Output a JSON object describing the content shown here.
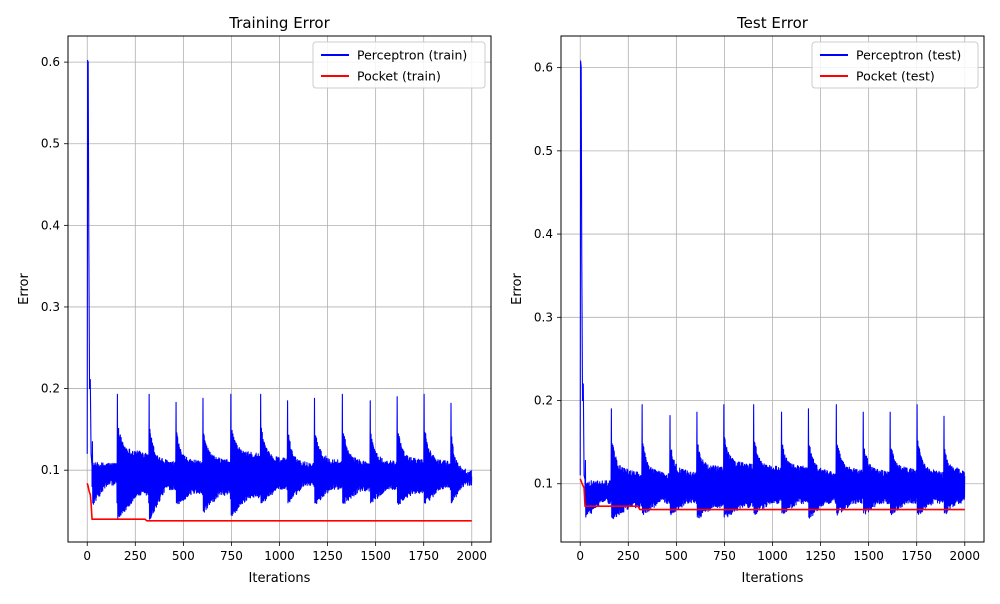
{
  "chart_data": [
    {
      "type": "line",
      "title": "Training Error",
      "xlabel": "Iterations",
      "ylabel": "Error",
      "xlim": [
        -100,
        2100
      ],
      "ylim": [
        0.012,
        0.632
      ],
      "xticks": [
        0,
        250,
        500,
        750,
        1000,
        1250,
        1500,
        1750,
        2000
      ],
      "xtick_labels": [
        "0",
        "250",
        "500",
        "750",
        "1000",
        "1250",
        "1500",
        "1750",
        "2000"
      ],
      "yticks": [
        0.1,
        0.2,
        0.3,
        0.4,
        0.5,
        0.6
      ],
      "ytick_labels": [
        "0.1",
        "0.2",
        "0.3",
        "0.4",
        "0.5",
        "0.6"
      ],
      "grid": true,
      "legend_position": "top-right",
      "series": [
        {
          "name": "Perceptron (train)",
          "color": "#0000ff",
          "start": {
            "x": [
              0,
              2,
              5,
              8,
              12,
              16,
              20,
              25
            ],
            "y": [
              0.12,
              0.602,
              0.6,
              0.39,
              0.2,
              0.211,
              0.12,
              0.105
            ]
          },
          "cycles": [
            {
              "start": 25,
              "peak": 0.135,
              "low_start": 0.06,
              "high_end": 0.108,
              "low_end": 0.085
            },
            {
              "start": 155,
              "peak": 0.193,
              "low_start": 0.04,
              "high_end": 0.12,
              "low_end": 0.072
            },
            {
              "start": 320,
              "peak": 0.193,
              "low_start": 0.04,
              "high_end": 0.108,
              "low_end": 0.08
            },
            {
              "start": 460,
              "peak": 0.183,
              "low_start": 0.06,
              "high_end": 0.108,
              "low_end": 0.075
            },
            {
              "start": 600,
              "peak": 0.188,
              "low_start": 0.05,
              "high_end": 0.11,
              "low_end": 0.073
            },
            {
              "start": 745,
              "peak": 0.193,
              "low_start": 0.045,
              "high_end": 0.118,
              "low_end": 0.07
            },
            {
              "start": 900,
              "peak": 0.193,
              "low_start": 0.06,
              "high_end": 0.112,
              "low_end": 0.08
            },
            {
              "start": 1040,
              "peak": 0.185,
              "low_start": 0.06,
              "high_end": 0.106,
              "low_end": 0.085
            },
            {
              "start": 1180,
              "peak": 0.188,
              "low_start": 0.06,
              "high_end": 0.11,
              "low_end": 0.08
            },
            {
              "start": 1325,
              "peak": 0.193,
              "low_start": 0.06,
              "high_end": 0.108,
              "low_end": 0.078
            },
            {
              "start": 1470,
              "peak": 0.185,
              "low_start": 0.06,
              "high_end": 0.108,
              "low_end": 0.08
            },
            {
              "start": 1610,
              "peak": 0.19,
              "low_start": 0.06,
              "high_end": 0.11,
              "low_end": 0.075
            },
            {
              "start": 1750,
              "peak": 0.193,
              "low_start": 0.06,
              "high_end": 0.108,
              "low_end": 0.08
            },
            {
              "start": 1890,
              "peak": 0.182,
              "low_start": 0.06,
              "high_end": 0.097,
              "low_end": 0.085
            }
          ]
        },
        {
          "name": "Pocket (train)",
          "color": "#ff0000",
          "x": [
            0,
            5,
            10,
            16,
            20,
            25,
            300,
            310,
            2000
          ],
          "y": [
            0.084,
            0.08,
            0.074,
            0.07,
            0.06,
            0.04,
            0.04,
            0.038,
            0.038
          ]
        }
      ]
    },
    {
      "type": "line",
      "title": "Test Error",
      "xlabel": "Iterations",
      "ylabel": "Error",
      "xlim": [
        -100,
        2100
      ],
      "ylim": [
        0.03,
        0.638
      ],
      "xticks": [
        0,
        250,
        500,
        750,
        1000,
        1250,
        1500,
        1750,
        2000
      ],
      "xtick_labels": [
        "0",
        "250",
        "500",
        "750",
        "1000",
        "1250",
        "1500",
        "1750",
        "2000"
      ],
      "yticks": [
        0.1,
        0.2,
        0.3,
        0.4,
        0.5,
        0.6
      ],
      "ytick_labels": [
        "0.1",
        "0.2",
        "0.3",
        "0.4",
        "0.5",
        "0.6"
      ],
      "grid": true,
      "legend_position": "top-right",
      "series": [
        {
          "name": "Perceptron (test)",
          "color": "#0000ff",
          "start": {
            "x": [
              0,
              2,
              5,
              8,
              12,
              16,
              20,
              25
            ],
            "y": [
              0.11,
              0.608,
              0.6,
              0.37,
              0.2,
              0.22,
              0.11,
              0.105
            ]
          },
          "cycles": [
            {
              "start": 25,
              "peak": 0.128,
              "low_start": 0.06,
              "high_end": 0.115,
              "low_end": 0.08
            },
            {
              "start": 160,
              "peak": 0.19,
              "low_start": 0.06,
              "high_end": 0.112,
              "low_end": 0.075
            },
            {
              "start": 320,
              "peak": 0.195,
              "low_start": 0.065,
              "high_end": 0.11,
              "low_end": 0.08
            },
            {
              "start": 465,
              "peak": 0.182,
              "low_start": 0.065,
              "high_end": 0.112,
              "low_end": 0.08
            },
            {
              "start": 605,
              "peak": 0.186,
              "low_start": 0.06,
              "high_end": 0.118,
              "low_end": 0.075
            },
            {
              "start": 745,
              "peak": 0.195,
              "low_start": 0.06,
              "high_end": 0.122,
              "low_end": 0.075
            },
            {
              "start": 900,
              "peak": 0.195,
              "low_start": 0.065,
              "high_end": 0.118,
              "low_end": 0.08
            },
            {
              "start": 1045,
              "peak": 0.186,
              "low_start": 0.065,
              "high_end": 0.118,
              "low_end": 0.08
            },
            {
              "start": 1185,
              "peak": 0.19,
              "low_start": 0.06,
              "high_end": 0.112,
              "low_end": 0.08
            },
            {
              "start": 1330,
              "peak": 0.195,
              "low_start": 0.065,
              "high_end": 0.114,
              "low_end": 0.08
            },
            {
              "start": 1470,
              "peak": 0.186,
              "low_start": 0.065,
              "high_end": 0.112,
              "low_end": 0.08
            },
            {
              "start": 1610,
              "peak": 0.186,
              "low_start": 0.065,
              "high_end": 0.115,
              "low_end": 0.08
            },
            {
              "start": 1750,
              "peak": 0.195,
              "low_start": 0.065,
              "high_end": 0.112,
              "low_end": 0.08
            },
            {
              "start": 1890,
              "peak": 0.181,
              "low_start": 0.065,
              "high_end": 0.115,
              "low_end": 0.08
            }
          ]
        },
        {
          "name": "Pocket (test)",
          "color": "#ff0000",
          "x": [
            0,
            10,
            20,
            25,
            300,
            310,
            2000
          ],
          "y": [
            0.106,
            0.1,
            0.095,
            0.073,
            0.073,
            0.069,
            0.069
          ]
        }
      ]
    }
  ]
}
